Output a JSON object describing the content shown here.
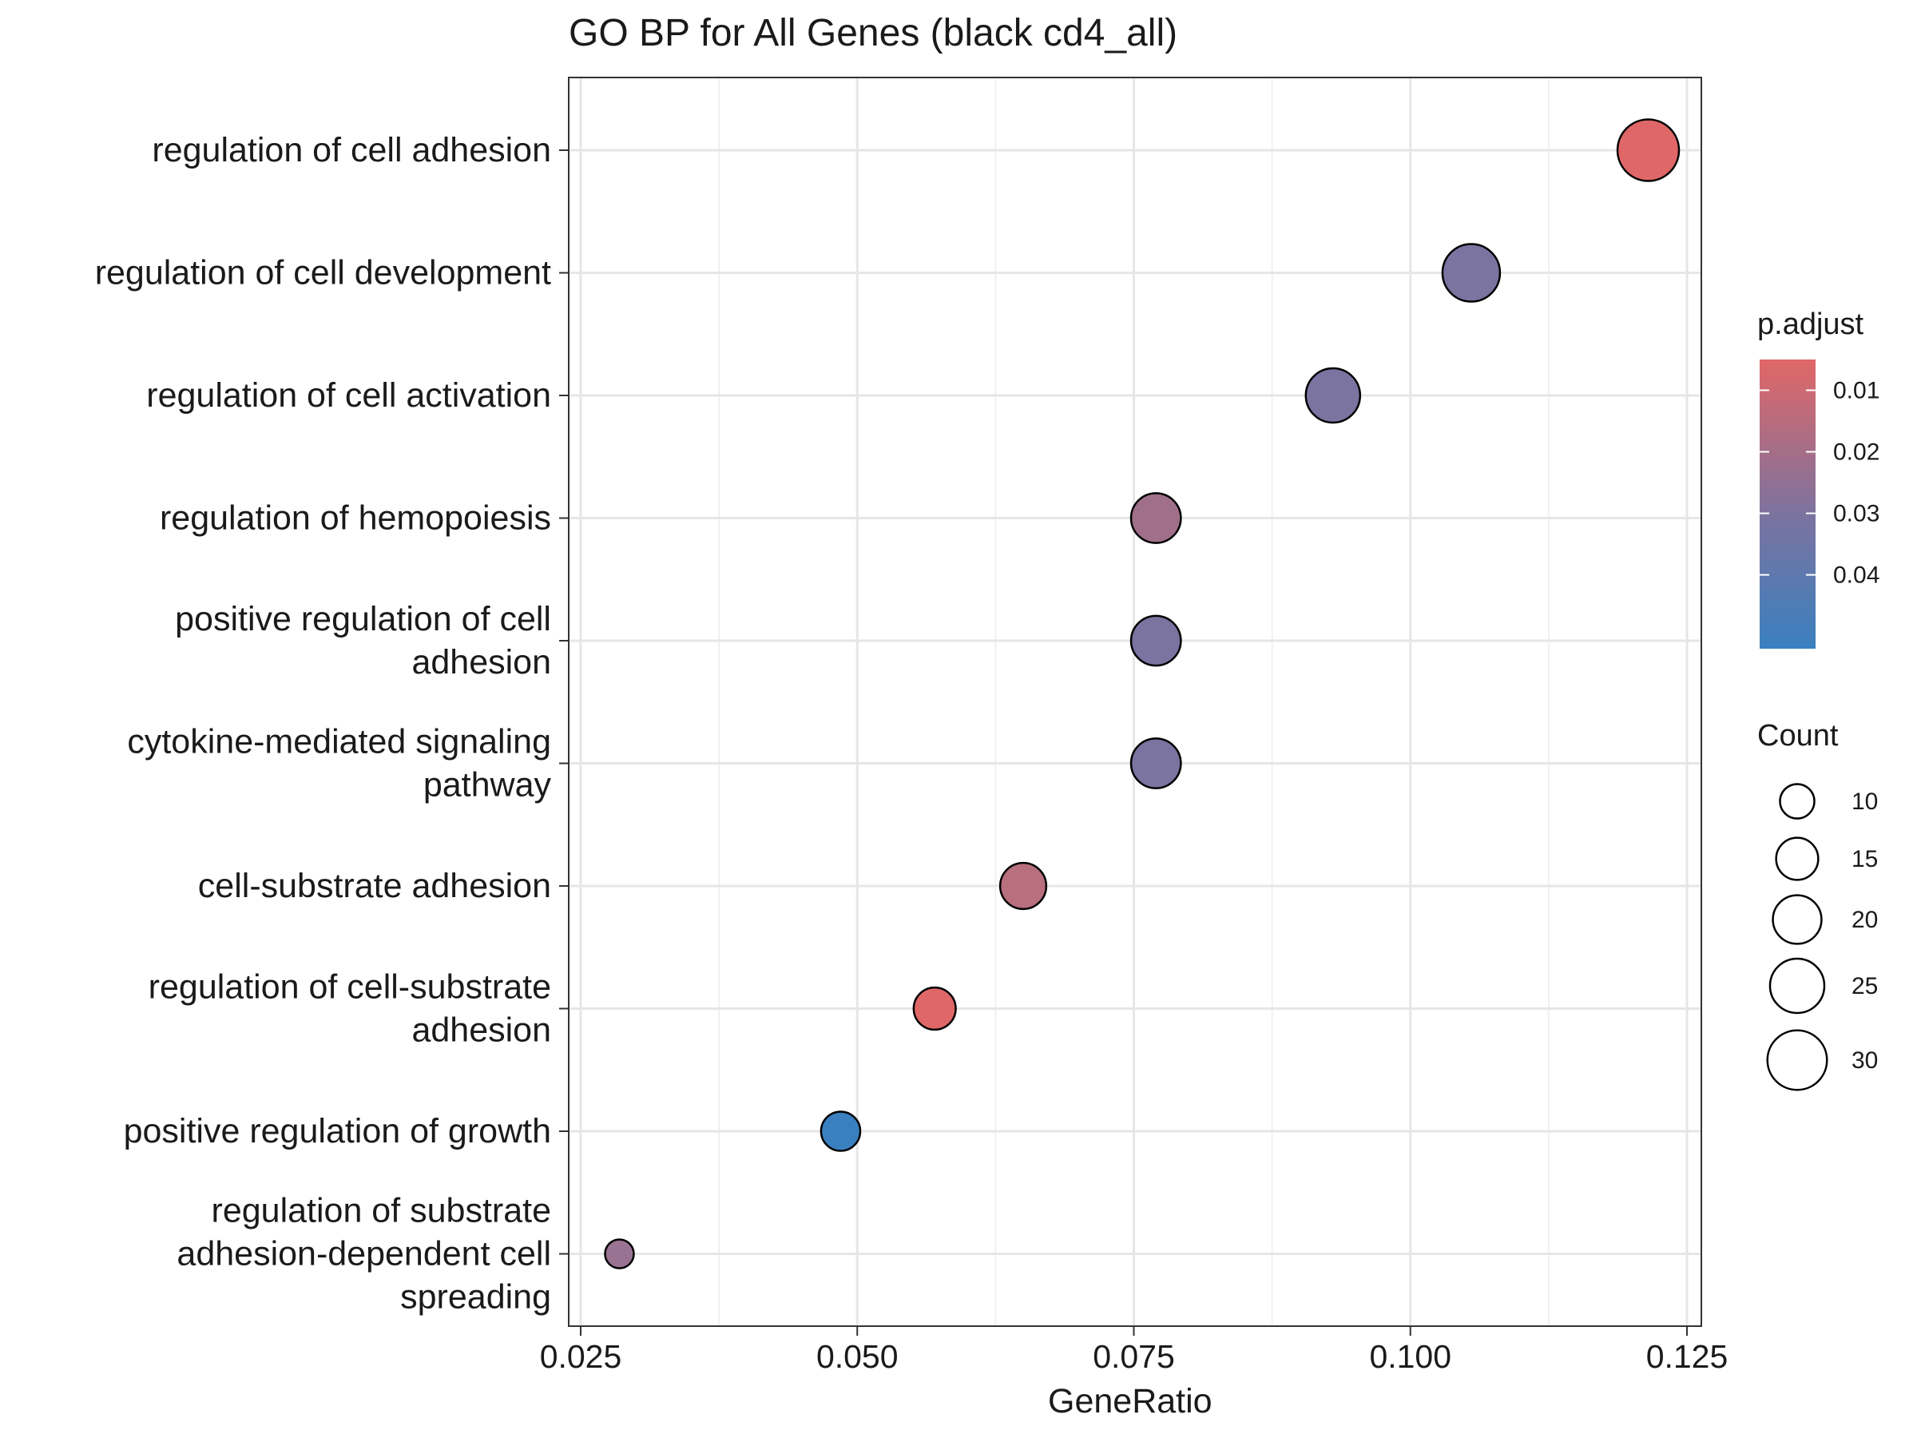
{
  "chart_data": {
    "type": "scatter",
    "title": "GO BP for All Genes (black cd4_all)",
    "xlabel": "GeneRatio",
    "ylabel": "",
    "xlim": [
      0.025,
      0.125
    ],
    "x_ticks": [
      "0.025",
      "0.050",
      "0.075",
      "0.100",
      "0.125"
    ],
    "grid": true,
    "points": [
      {
        "term_lines": [
          "regulation of cell adhesion"
        ],
        "gene_ratio": 0.1215,
        "count": 32,
        "p_adjust": 0.007,
        "color": "#e06767"
      },
      {
        "term_lines": [
          "regulation of cell development"
        ],
        "gene_ratio": 0.1055,
        "count": 28,
        "p_adjust": 0.042,
        "color": "#7b73a0"
      },
      {
        "term_lines": [
          "regulation of cell activation"
        ],
        "gene_ratio": 0.093,
        "count": 25,
        "p_adjust": 0.041,
        "color": "#7b73a0"
      },
      {
        "term_lines": [
          "regulation of hemopoiesis"
        ],
        "gene_ratio": 0.077,
        "count": 21,
        "p_adjust": 0.026,
        "color": "#a0708a"
      },
      {
        "term_lines": [
          "positive regulation of cell",
          "adhesion"
        ],
        "gene_ratio": 0.077,
        "count": 21,
        "p_adjust": 0.042,
        "color": "#7b73a0"
      },
      {
        "term_lines": [
          "cytokine-mediated signaling",
          "pathway"
        ],
        "gene_ratio": 0.077,
        "count": 21,
        "p_adjust": 0.042,
        "color": "#7b73a0"
      },
      {
        "term_lines": [
          "cell-substrate adhesion"
        ],
        "gene_ratio": 0.065,
        "count": 18,
        "p_adjust": 0.018,
        "color": "#b86f7e"
      },
      {
        "term_lines": [
          "regulation of cell-substrate",
          "adhesion"
        ],
        "gene_ratio": 0.057,
        "count": 15,
        "p_adjust": 0.007,
        "color": "#e06767"
      },
      {
        "term_lines": [
          "positive regulation of growth"
        ],
        "gene_ratio": 0.0485,
        "count": 13,
        "p_adjust": 0.049,
        "color": "#3a80c0"
      },
      {
        "term_lines": [
          "regulation of substrate",
          "adhesion-dependent cell",
          "spreading"
        ],
        "gene_ratio": 0.0285,
        "count": 7,
        "p_adjust": 0.03,
        "color": "#9a7392"
      }
    ],
    "legend_color": {
      "title": "p.adjust",
      "ticks": [
        {
          "label": "0.01",
          "value": 0.01
        },
        {
          "label": "0.02",
          "value": 0.02
        },
        {
          "label": "0.03",
          "value": 0.03
        },
        {
          "label": "0.04",
          "value": 0.04
        }
      ],
      "range": [
        0.005,
        0.052
      ],
      "color_high_p": "#3a80c0",
      "color_low_p": "#e06767"
    },
    "legend_size": {
      "title": "Count",
      "entries": [
        {
          "label": "10",
          "count": 10
        },
        {
          "label": "15",
          "count": 15
        },
        {
          "label": "20",
          "count": 20
        },
        {
          "label": "25",
          "count": 25
        },
        {
          "label": "30",
          "count": 30
        }
      ]
    },
    "legend_placement": "right"
  }
}
